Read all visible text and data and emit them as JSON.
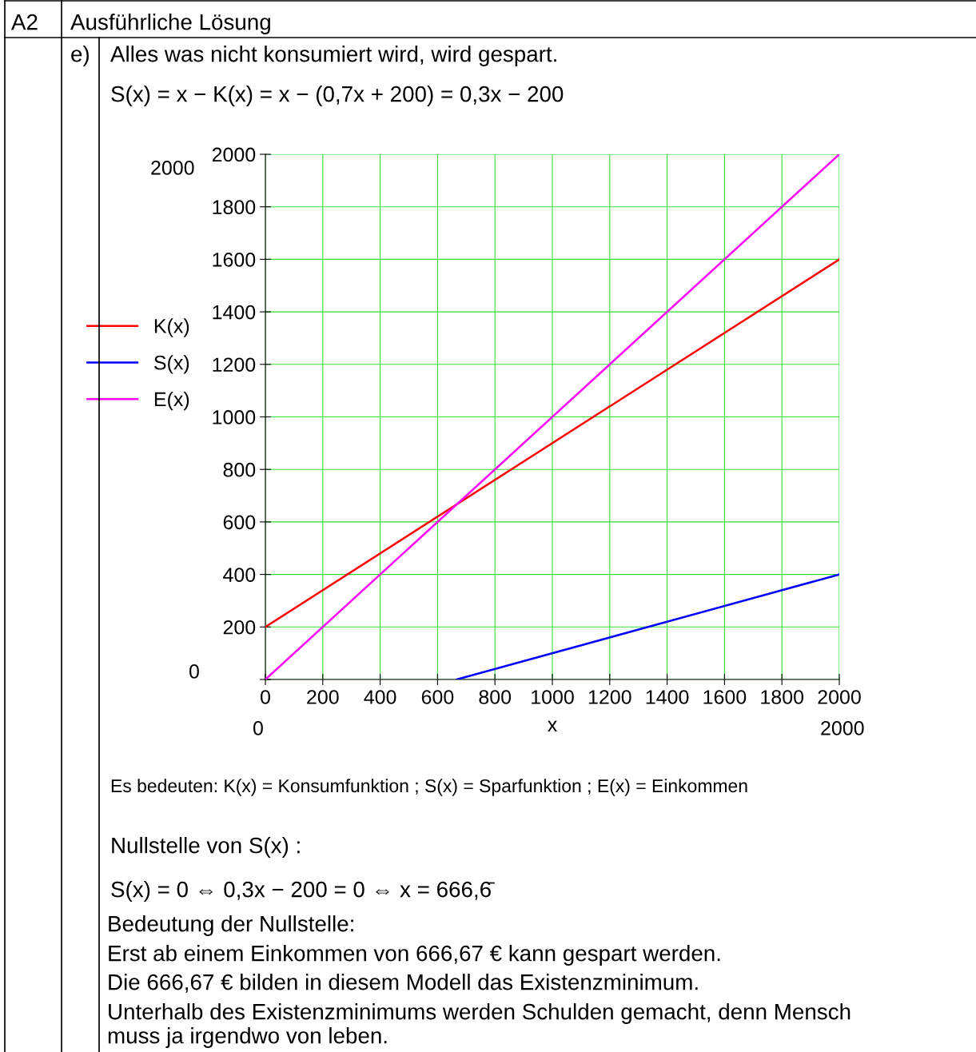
{
  "chart_data": {
    "type": "line",
    "xlabel": "x",
    "series": [
      {
        "name": "K(x)",
        "color": "#ff0000",
        "x": [
          0,
          2000
        ],
        "values": [
          200,
          1600
        ]
      },
      {
        "name": "S(x)",
        "color": "#0000ff",
        "x": [
          666.67,
          2000
        ],
        "values": [
          0,
          400
        ]
      },
      {
        "name": "E(x)",
        "color": "#ff00ff",
        "x": [
          0,
          2000
        ],
        "values": [
          0,
          2000
        ]
      }
    ],
    "xlim": [
      0,
      2000
    ],
    "ylim": [
      0,
      2000
    ],
    "xticks": [
      0,
      200,
      400,
      600,
      800,
      1000,
      1200,
      1400,
      1600,
      1800,
      2000
    ],
    "yticks": [
      {
        "value": 0,
        "label": null
      },
      200,
      400,
      600,
      800,
      1000,
      1200,
      1400,
      1600,
      1800,
      2000
    ],
    "grid": true,
    "legend": "left",
    "marker": "none",
    "line_style": "solid",
    "annotations": [
      "A2",
      "Ausführliche Lösung",
      "e)",
      "Alles was nicht konsumiert wird, wird gespart.",
      "S(x) = x − K(x) = x − (0,7x + 200) = 0,3x − 200",
      "2000",
      "0",
      "0",
      "2000",
      "Es bedeuten: K(x) = Konsumfunktion ; S(x) = Sparfunktion ; E(x) = Einkommen",
      "Nullstelle von S(x) :",
      "S(x) = 0 ⇔ 0,3x − 200 = 0 ⇔ x = 666,6̄",
      "Bedeutung der Nullstelle:",
      "Erst ab einem Einkommen von 666,67 € kann gespart werden.",
      "Die 666,67 € bilden in diesem Modell das Existenzminimum.",
      "Unterhalb des Existenzminimums werden Schulden gemacht, denn Mensch",
      "muss ja irgendwo von leben."
    ]
  }
}
